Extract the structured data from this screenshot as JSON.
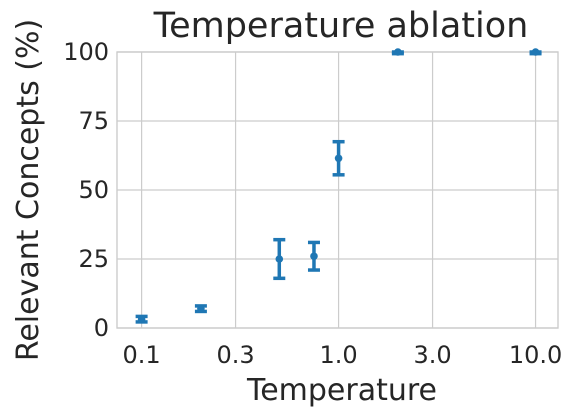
{
  "chart_data": {
    "type": "scatter",
    "title": "Temperature ablation",
    "xlabel": "Temperature",
    "ylabel": "Relevant Concepts (%)",
    "x_scale": "log",
    "xlim": [
      0.075,
      13.0
    ],
    "ylim": [
      0,
      100
    ],
    "x_ticks": [
      0.1,
      0.3,
      1.0,
      3.0,
      10.0
    ],
    "x_tick_labels": [
      "0.1",
      "0.3",
      "1.0",
      "3.0",
      "10.0"
    ],
    "y_ticks": [
      0,
      25,
      50,
      75,
      100
    ],
    "y_tick_labels": [
      "0",
      "25",
      "50",
      "75",
      "100"
    ],
    "grid": true,
    "color": "#1f77b4",
    "points": [
      {
        "x": 0.1,
        "y": 3.2,
        "err_low": 1.0,
        "err_high": 1.0
      },
      {
        "x": 0.2,
        "y": 7.0,
        "err_low": 1.0,
        "err_high": 1.0
      },
      {
        "x": 0.5,
        "y": 25.0,
        "err_low": 7.0,
        "err_high": 7.0
      },
      {
        "x": 0.75,
        "y": 26.0,
        "err_low": 5.0,
        "err_high": 5.0
      },
      {
        "x": 1.0,
        "y": 61.5,
        "err_low": 6.0,
        "err_high": 6.0
      },
      {
        "x": 2.0,
        "y": 100.0,
        "err_low": 0.6,
        "err_high": 0.0
      },
      {
        "x": 10.0,
        "y": 100.0,
        "err_low": 0.6,
        "err_high": 0.0
      }
    ]
  }
}
